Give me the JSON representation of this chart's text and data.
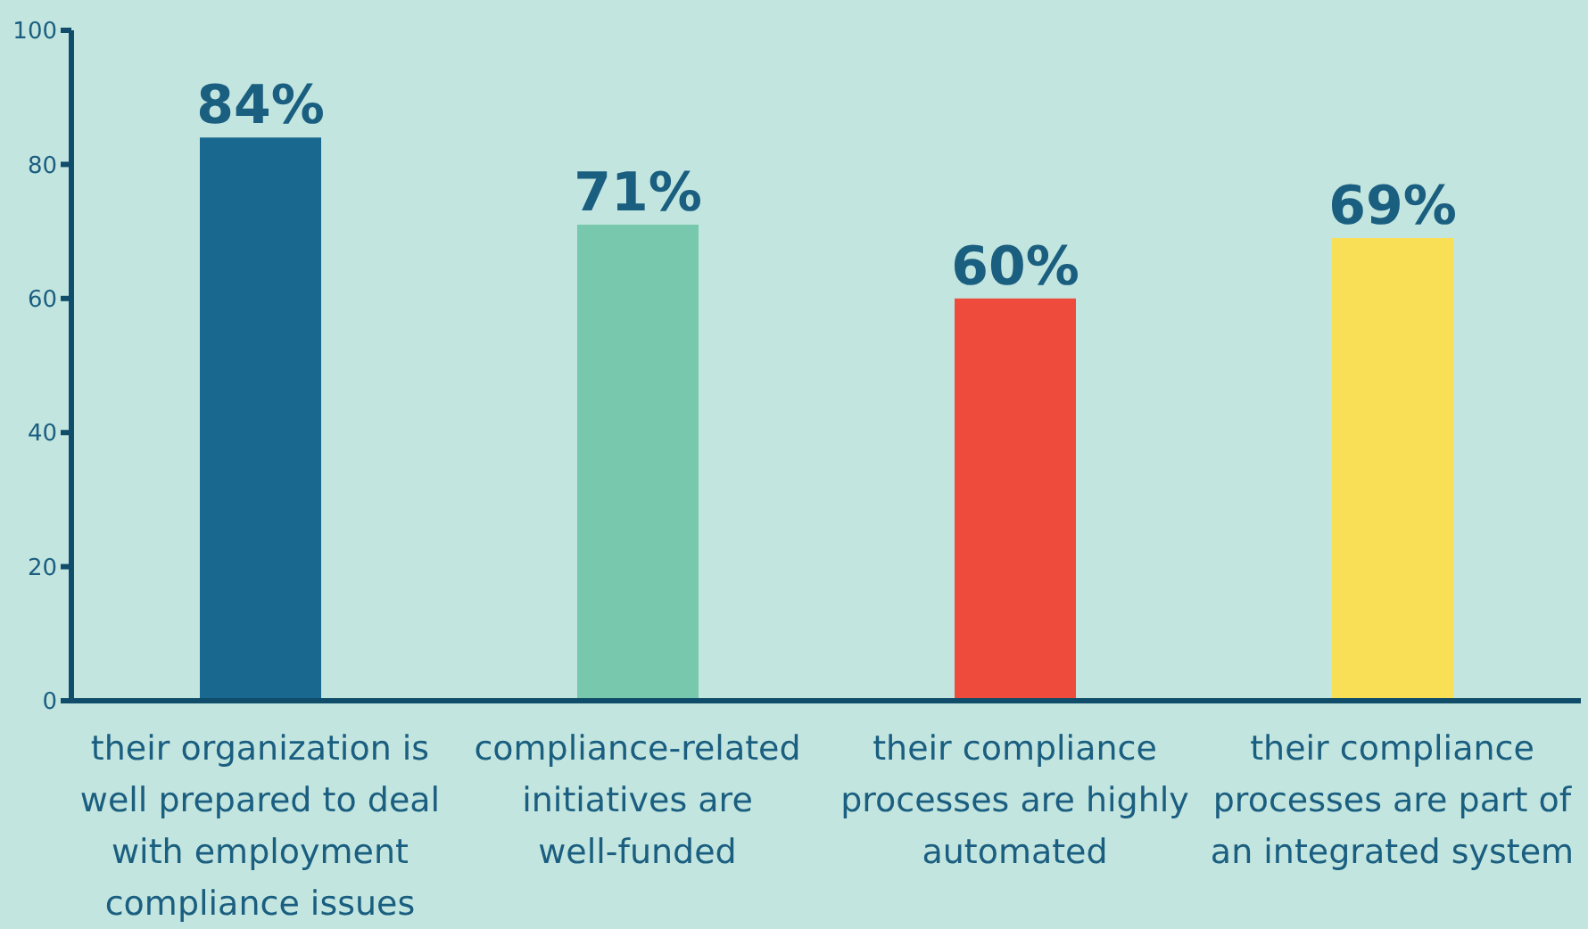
{
  "chart_data": {
    "type": "bar",
    "categories": [
      "their organization is well prepared to deal with employment compliance issues",
      "compliance-related initiatives are well-funded",
      "their compliance processes are highly automated",
      "their compliance processes are part of an integrated system"
    ],
    "values": [
      84,
      71,
      60,
      69
    ],
    "colors": [
      "#18688f",
      "#77c8ac",
      "#ef4b3c",
      "#f8df55"
    ],
    "value_labels": [
      "84%",
      "71%",
      "60%",
      "69%"
    ],
    "ylim": [
      0,
      100
    ],
    "yticks": [
      0,
      20,
      40,
      60,
      80,
      100
    ]
  }
}
